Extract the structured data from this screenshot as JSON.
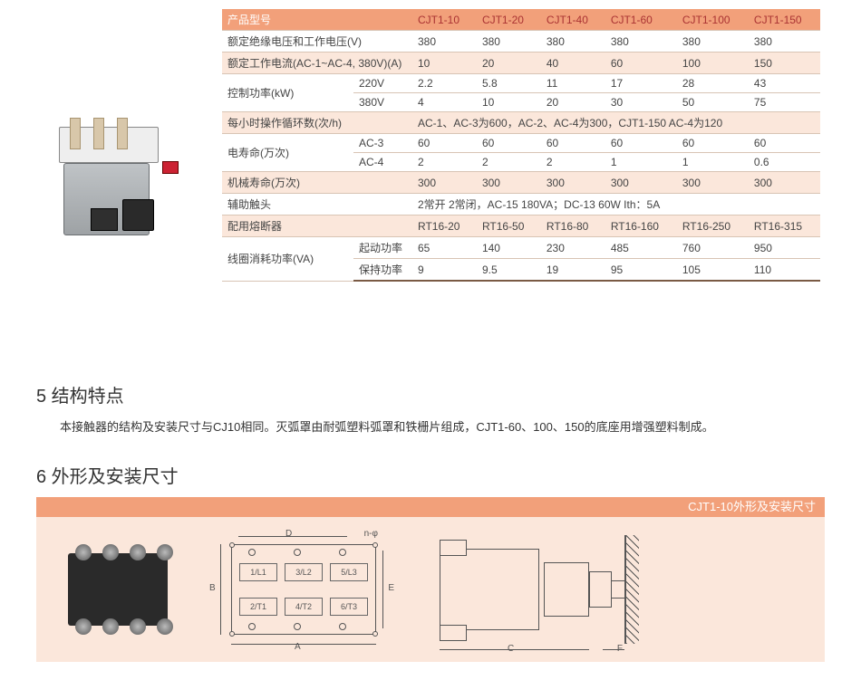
{
  "columns": [
    "CJT1-10",
    "CJT1-20",
    "CJT1-40",
    "CJT1-60",
    "CJT1-100",
    "CJT1-150"
  ],
  "header_label": "产品型号",
  "rows": {
    "r1": {
      "label": "额定绝缘电压和工作电压(V)",
      "v": [
        "380",
        "380",
        "380",
        "380",
        "380",
        "380"
      ]
    },
    "r2": {
      "label": "额定工作电流(AC-1~AC-4, 380V)(A)",
      "v": [
        "10",
        "20",
        "40",
        "60",
        "100",
        "150"
      ]
    },
    "r3": {
      "label": "控制功率(kW)",
      "sub": [
        "220V",
        "380V"
      ],
      "va": [
        "2.2",
        "5.8",
        "11",
        "17",
        "28",
        "43"
      ],
      "vb": [
        "4",
        "10",
        "20",
        "30",
        "50",
        "75"
      ]
    },
    "r4": {
      "label": "每小时操作循环数(次/h)",
      "span": "AC-1、AC-3为600，AC-2、AC-4为300，CJT1-150 AC-4为120"
    },
    "r5": {
      "label": "电寿命(万次)",
      "sub": [
        "AC-3",
        "AC-4"
      ],
      "va": [
        "60",
        "60",
        "60",
        "60",
        "60",
        "60"
      ],
      "vb": [
        "2",
        "2",
        "2",
        "1",
        "1",
        "0.6"
      ]
    },
    "r6": {
      "label": "机械寿命(万次)",
      "v": [
        "300",
        "300",
        "300",
        "300",
        "300",
        "300"
      ]
    },
    "r7": {
      "label": "辅助触头",
      "span": "2常开  2常闭，AC-15  180VA；DC-13  60W  Ith：5A"
    },
    "r8": {
      "label": "配用熔断器",
      "v": [
        "RT16-20",
        "RT16-50",
        "RT16-80",
        "RT16-160",
        "RT16-250",
        "RT16-315"
      ]
    },
    "r9": {
      "label": "线圈消耗功率(VA)",
      "sub": [
        "起动功率",
        "保持功率"
      ],
      "va": [
        "65",
        "140",
        "230",
        "485",
        "760",
        "950"
      ],
      "vb": [
        "9",
        "9.5",
        "19",
        "95",
        "105",
        "110"
      ]
    }
  },
  "sec5_title": "5 结构特点",
  "sec5_body": "本接触器的结构及安装尺寸与CJ10相同。灭弧罩由耐弧塑料弧罩和铁栅片组成，CJT1-60、100、150的底座用增强塑料制成。",
  "sec6_title": "6 外形及安装尺寸",
  "dim_strip": "CJT1-10外形及安装尺寸",
  "drawing_labels": {
    "A": "A",
    "B": "B",
    "C": "C",
    "D": "D",
    "E": "E",
    "F": "F",
    "nphi": "n-φ",
    "t11": "1/L1",
    "t12": "3/L2",
    "t13": "5/L3",
    "t21": "2/T1",
    "t22": "4/T2",
    "t23": "6/T3"
  },
  "colors": {
    "accent": "#f2a07a",
    "shade": "#fbe7db",
    "header_text": "#a33",
    "border": "#d8c4b4"
  }
}
